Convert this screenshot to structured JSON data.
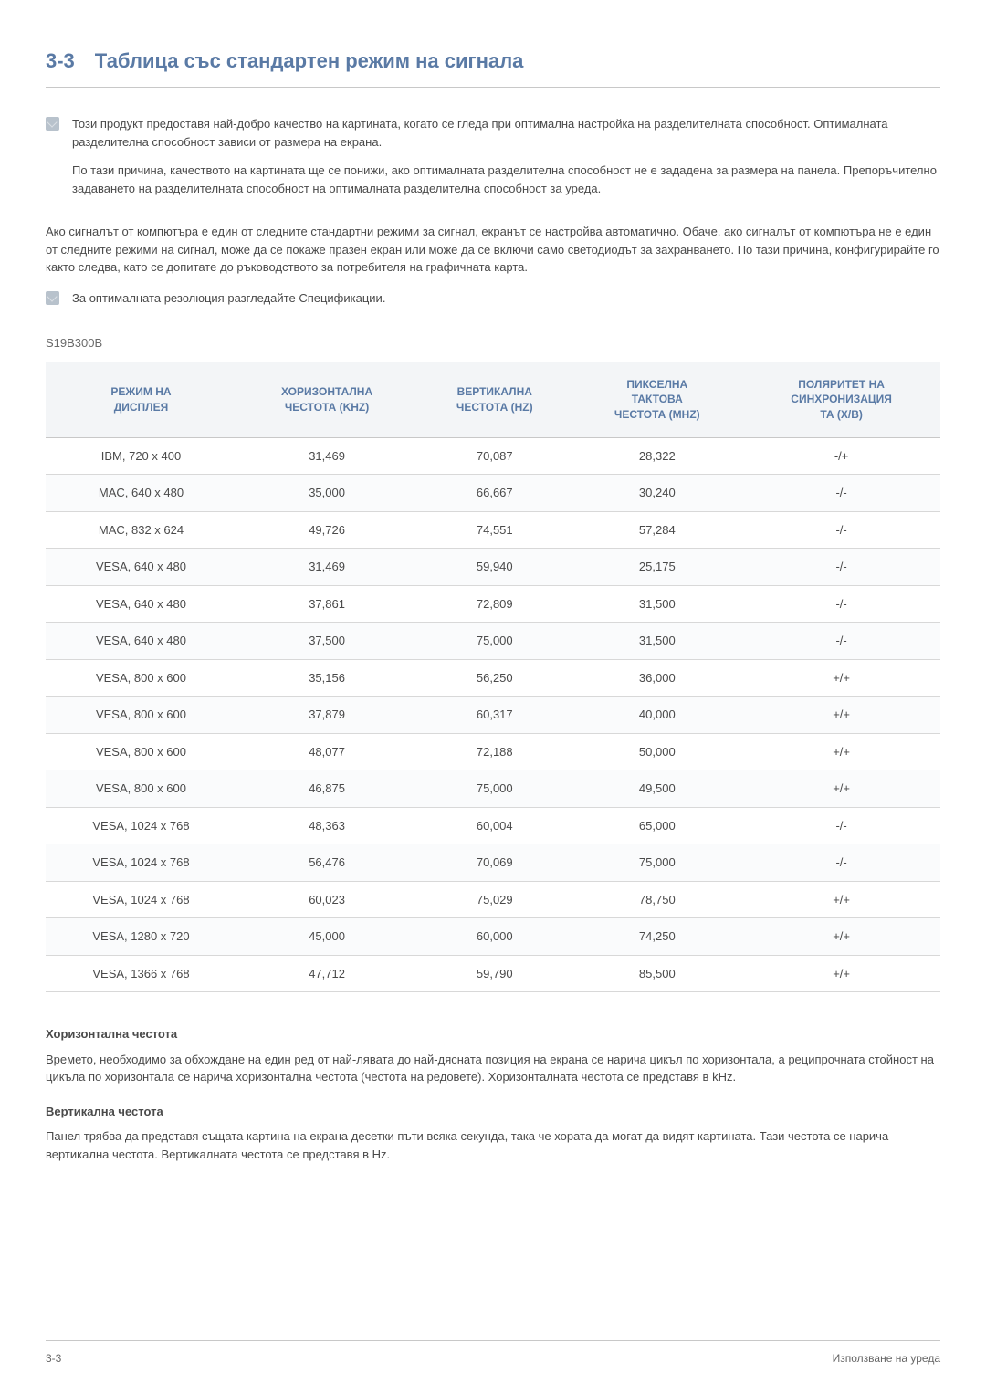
{
  "section": {
    "number": "3-3",
    "title": "Таблица със стандартен режим на сигнала"
  },
  "note1": {
    "p1": "Този продукт предоставя най-добро качество на картината, когато се гледа при оптимална настройка на разделителната способност. Оптималната разделителна способност зависи от размера на екрана.",
    "p2": "По тази причина, качеството на картината ще се понижи, ако оптималната разделителна способност не е зададена за размера на панела. Препоръчително задаването на разделителната способност на оптималната разделителна способност за уреда."
  },
  "para1": "Ако сигналът от компютъра е един от следните стандартни режими за сигнал, екранът се настройва автоматично. Обаче, ако сигналът от компютъра не е един от следните режими на сигнал, може да се покаже празен екран или може да се включи само светодиодът за захранването. По тази причина, конфигурирайте го както следва, като се допитате до ръководството за потребителя на графичната карта.",
  "note2": "За оптималната резолюция разгледайте Спецификации.",
  "model": "S19B300B",
  "table": {
    "columns": [
      "РЕЖИМ НА ДИСПЛЕЯ",
      "ХОРИЗОНТАЛНА ЧЕСТОТА (KHZ)",
      "ВЕРТИКАЛНА ЧЕСТОТА (HZ)",
      "ПИКСЕЛНА ТАКТОВА ЧЕСТОТА (MHZ)",
      "ПОЛЯРИТЕТ НА СИНХРОНИЗАЦИЯТА (X/B)"
    ],
    "rows": [
      [
        "IBM, 720 x 400",
        "31,469",
        "70,087",
        "28,322",
        "-/+"
      ],
      [
        "MAC, 640 x 480",
        "35,000",
        "66,667",
        "30,240",
        "-/-"
      ],
      [
        "MAC, 832 x 624",
        "49,726",
        "74,551",
        "57,284",
        "-/-"
      ],
      [
        "VESA, 640 x 480",
        "31,469",
        "59,940",
        "25,175",
        "-/-"
      ],
      [
        "VESA, 640 x 480",
        "37,861",
        "72,809",
        "31,500",
        "-/-"
      ],
      [
        "VESA, 640 x 480",
        "37,500",
        "75,000",
        "31,500",
        "-/-"
      ],
      [
        "VESA, 800 x 600",
        "35,156",
        "56,250",
        "36,000",
        "+/+"
      ],
      [
        "VESA, 800 x 600",
        "37,879",
        "60,317",
        "40,000",
        "+/+"
      ],
      [
        "VESA, 800 x 600",
        "48,077",
        "72,188",
        "50,000",
        "+/+"
      ],
      [
        "VESA, 800 x 600",
        "46,875",
        "75,000",
        "49,500",
        "+/+"
      ],
      [
        "VESA, 1024 x 768",
        "48,363",
        "60,004",
        "65,000",
        "-/-"
      ],
      [
        "VESA, 1024 x 768",
        "56,476",
        "70,069",
        "75,000",
        "-/-"
      ],
      [
        "VESA, 1024 x 768",
        "60,023",
        "75,029",
        "78,750",
        "+/+"
      ],
      [
        "VESA, 1280 x 720",
        "45,000",
        "60,000",
        "74,250",
        "+/+"
      ],
      [
        "VESA, 1366 x 768",
        "47,712",
        "59,790",
        "85,500",
        "+/+"
      ]
    ]
  },
  "defs": {
    "h1": "Хоризонтална честота",
    "b1": "Времето, необходимо за обхождане на един ред от най-лявата до най-дясната позиция на екрана се нарича цикъл по хоризонтала, а реципрочната стойност на цикъла по хоризонтала се нарича хоризонтална честота (честота на редовете). Хоризонталната честота се представя в kHz.",
    "h2": "Вертикална честота",
    "b2": "Панел трябва да представя същата картина на екрана десетки пъти всяка секунда, така че хората да могат да видят картината. Тази честота се нарича вертикална честота. Вертикалната честота се представя в Hz."
  },
  "footer": {
    "left": "3-3",
    "right": "Използване на уреда"
  }
}
